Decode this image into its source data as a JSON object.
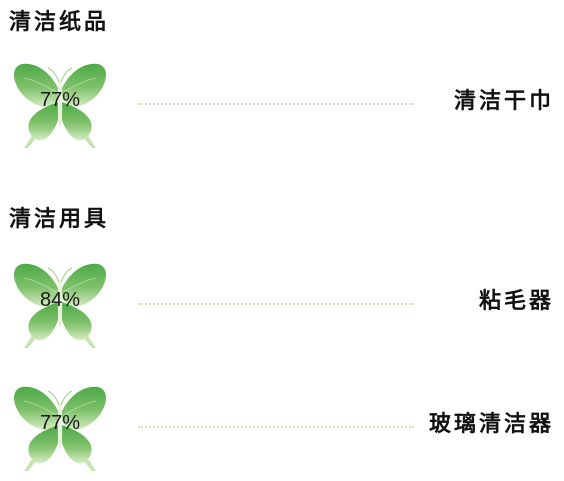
{
  "colors": {
    "butterfly_light": "#c8e6b0",
    "butterfly_mid": "#8fcb78",
    "butterfly_dark": "#4daa47",
    "dots": "#cfe0b4",
    "text": "#111111"
  },
  "sections": [
    {
      "title": "清洁纸品",
      "items": [
        {
          "percent": "77%",
          "value": 77,
          "label": "清洁干巾",
          "icon": "butterfly-icon"
        }
      ]
    },
    {
      "title": "清洁用具",
      "items": [
        {
          "percent": "84%",
          "value": 84,
          "label": "粘毛器",
          "icon": "butterfly-icon"
        },
        {
          "percent": "77%",
          "value": 77,
          "label": "玻璃清洁器",
          "icon": "butterfly-icon"
        }
      ]
    }
  ]
}
